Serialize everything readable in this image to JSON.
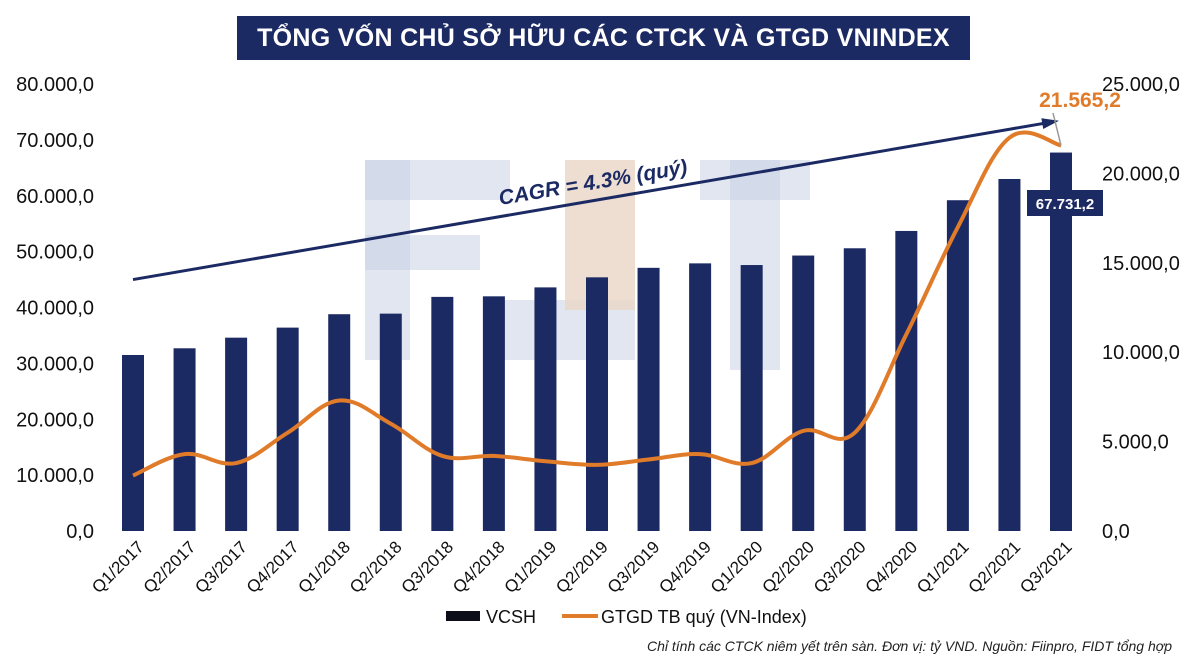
{
  "title": "TỔNG VỐN CHỦ SỞ HỮU CÁC CTCK VÀ GTGD VNINDEX",
  "footnote": "Chỉ tính các CTCK niêm yết trên sàn. Đơn vị: tỷ VND. Nguồn: Fiinpro, FIDT tổng hợp",
  "colors": {
    "bar": "#1c2a63",
    "line": "#e07b2a",
    "trend": "#1c2a63",
    "title_bg": "#1c2a63",
    "watermark": "#c9d2e6"
  },
  "chart_data": {
    "type": "bar",
    "categories": [
      "Q1/2017",
      "Q2/2017",
      "Q3/2017",
      "Q4/2017",
      "Q1/2018",
      "Q2/2018",
      "Q3/2018",
      "Q4/2018",
      "Q1/2019",
      "Q2/2019",
      "Q3/2019",
      "Q4/2019",
      "Q1/2020",
      "Q2/2020",
      "Q3/2020",
      "Q4/2020",
      "Q1/2021",
      "Q2/2021",
      "Q3/2021"
    ],
    "series": [
      {
        "name": "VCSH",
        "type": "bar",
        "axis": "left",
        "values": [
          31500,
          32700,
          34600,
          36400,
          38800,
          38900,
          41900,
          42000,
          43600,
          45400,
          47100,
          47900,
          47600,
          49300,
          50600,
          53700,
          59200,
          63000,
          67731.2
        ]
      },
      {
        "name": "GTGD TB quý (VN-Index)",
        "type": "line",
        "axis": "right",
        "values": [
          3100,
          4300,
          3800,
          5500,
          7300,
          6000,
          4200,
          4200,
          3900,
          3700,
          4000,
          4300,
          3800,
          5600,
          5500,
          11000,
          17000,
          22000,
          21565.2
        ]
      }
    ],
    "y_left": {
      "min": 0,
      "max": 80000,
      "step": 10000,
      "tick_labels": [
        "0,0",
        "10.000,0",
        "20.000,0",
        "30.000,0",
        "40.000,0",
        "50.000,0",
        "60.000,0",
        "70.000,0",
        "80.000,0"
      ]
    },
    "y_right": {
      "min": 0,
      "max": 25000,
      "step": 5000,
      "tick_labels": [
        "0,0",
        "5.000,0",
        "10.000,0",
        "15.000,0",
        "20.000,0",
        "25.000,0"
      ]
    },
    "annotations": {
      "cagr": "CAGR = 4.3% (quý)",
      "last_bar_label": "67.731,2",
      "last_line_label": "21.565,2"
    },
    "trend_line": {
      "from": {
        "category": "Q1/2017",
        "value": 45000
      },
      "to": {
        "category": "Q3/2021",
        "value": 73300
      }
    },
    "legend": {
      "placement": "bottom",
      "items": [
        "VCSH",
        "GTGD TB quý (VN-Index)"
      ]
    },
    "grid": false
  }
}
